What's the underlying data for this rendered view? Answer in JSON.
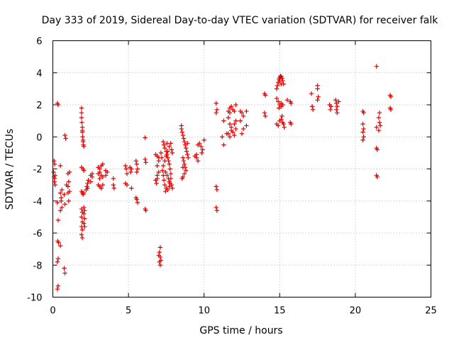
{
  "chart_data": {
    "type": "scatter",
    "title": "Day 333 of 2019, Sidereal Day-to-day VTEC variation (SDTVAR) for receiver falk",
    "xlabel": "GPS time / hours",
    "ylabel": "SDTVAR / TECUs",
    "xlim": [
      0,
      25
    ],
    "ylim": [
      -10,
      6
    ],
    "xticks": [
      0,
      5,
      10,
      15,
      20,
      25
    ],
    "yticks": [
      -10,
      -8,
      -6,
      -4,
      -2,
      0,
      2,
      4,
      6
    ],
    "grid": true,
    "marker": "+",
    "color": "#e00000",
    "series": [
      {
        "name": "SDTVAR",
        "points": [
          [
            0.05,
            -2.2
          ],
          [
            0.08,
            -2.5
          ],
          [
            0.1,
            -2.8
          ],
          [
            0.12,
            -2.6
          ],
          [
            0.15,
            -2.4
          ],
          [
            0.08,
            -1.5
          ],
          [
            0.12,
            -1.7
          ],
          [
            0.15,
            -3.0
          ],
          [
            0.3,
            2.1
          ],
          [
            0.35,
            2.0
          ],
          [
            0.3,
            -4.1
          ],
          [
            0.35,
            -5.2
          ],
          [
            0.32,
            -6.5
          ],
          [
            0.38,
            -6.6
          ],
          [
            0.35,
            -7.6
          ],
          [
            0.3,
            -7.8
          ],
          [
            0.35,
            -9.3
          ],
          [
            0.3,
            -9.5
          ],
          [
            0.5,
            -1.8
          ],
          [
            0.5,
            -3.5
          ],
          [
            0.55,
            -3.8
          ],
          [
            0.5,
            -4.6
          ],
          [
            0.6,
            -4.4
          ],
          [
            0.5,
            -6.8
          ],
          [
            0.55,
            -4.0
          ],
          [
            0.6,
            -3.3
          ],
          [
            0.8,
            0.1
          ],
          [
            0.85,
            -0.1
          ],
          [
            0.75,
            -3.6
          ],
          [
            0.8,
            -4.2
          ],
          [
            0.75,
            -8.2
          ],
          [
            0.8,
            -8.5
          ],
          [
            0.9,
            -3.0
          ],
          [
            1.0,
            -3.1
          ],
          [
            1.05,
            -2.8
          ],
          [
            1.0,
            -2.3
          ],
          [
            1.1,
            -2.2
          ],
          [
            1.0,
            -3.5
          ],
          [
            1.05,
            -4.0
          ],
          [
            1.1,
            -3.4
          ],
          [
            1.9,
            1.8
          ],
          [
            1.9,
            1.5
          ],
          [
            1.9,
            1.2
          ],
          [
            1.92,
            0.9
          ],
          [
            1.95,
            0.6
          ],
          [
            1.95,
            0.3
          ],
          [
            1.97,
            0.0
          ],
          [
            2.0,
            -0.3
          ],
          [
            2.02,
            -0.5
          ],
          [
            2.05,
            -0.6
          ],
          [
            2.0,
            -0.2
          ],
          [
            1.95,
            0.4
          ],
          [
            1.9,
            -1.9
          ],
          [
            2.0,
            -2.0
          ],
          [
            2.05,
            -2.1
          ],
          [
            1.9,
            -3.4
          ],
          [
            1.95,
            -3.5
          ],
          [
            2.0,
            -3.6
          ],
          [
            2.05,
            -3.5
          ],
          [
            1.9,
            -4.5
          ],
          [
            1.95,
            -4.7
          ],
          [
            1.9,
            -5.0
          ],
          [
            1.95,
            -5.3
          ],
          [
            1.9,
            -5.6
          ],
          [
            1.95,
            -5.8
          ],
          [
            1.9,
            -6.1
          ],
          [
            1.95,
            -6.3
          ],
          [
            2.05,
            -4.4
          ],
          [
            2.1,
            -4.6
          ],
          [
            2.05,
            -4.8
          ],
          [
            2.1,
            -5.1
          ],
          [
            2.05,
            -5.4
          ],
          [
            2.1,
            -5.6
          ],
          [
            2.2,
            -3.3
          ],
          [
            2.25,
            -3.1
          ],
          [
            2.3,
            -2.9
          ],
          [
            2.35,
            -2.7
          ],
          [
            2.3,
            -3.2
          ],
          [
            2.5,
            -2.4
          ],
          [
            2.6,
            -2.3
          ],
          [
            2.5,
            -2.8
          ],
          [
            2.6,
            -2.5
          ],
          [
            3.0,
            -1.9
          ],
          [
            3.1,
            -2.0
          ],
          [
            3.2,
            -1.8
          ],
          [
            3.3,
            -1.7
          ],
          [
            3.0,
            -2.3
          ],
          [
            3.1,
            -2.2
          ],
          [
            3.2,
            -2.4
          ],
          [
            3.3,
            -2.5
          ],
          [
            3.1,
            -2.6
          ],
          [
            3.0,
            -3.0
          ],
          [
            3.1,
            -3.1
          ],
          [
            3.2,
            -3.2
          ],
          [
            3.3,
            -3.0
          ],
          [
            3.5,
            -2.1
          ],
          [
            3.5,
            -2.4
          ],
          [
            3.6,
            -2.2
          ],
          [
            4.0,
            -2.6
          ],
          [
            4.0,
            -3.0
          ],
          [
            4.05,
            -3.2
          ],
          [
            4.8,
            -1.8
          ],
          [
            4.85,
            -2.0
          ],
          [
            4.9,
            -2.3
          ],
          [
            4.8,
            -2.9
          ],
          [
            4.9,
            -3.0
          ],
          [
            5.1,
            -1.9
          ],
          [
            5.15,
            -2.2
          ],
          [
            5.2,
            -2.0
          ],
          [
            5.2,
            -3.2
          ],
          [
            5.5,
            -1.5
          ],
          [
            5.55,
            -1.7
          ],
          [
            5.6,
            -2.0
          ],
          [
            5.55,
            -2.2
          ],
          [
            5.5,
            -3.8
          ],
          [
            5.55,
            -3.9
          ],
          [
            5.6,
            -4.1
          ],
          [
            6.1,
            -0.05
          ],
          [
            6.1,
            -1.4
          ],
          [
            6.15,
            -1.6
          ],
          [
            6.1,
            -4.5
          ],
          [
            6.15,
            -4.6
          ],
          [
            6.8,
            -1.1
          ],
          [
            6.9,
            -1.2
          ],
          [
            7.0,
            -1.3
          ],
          [
            7.0,
            -1.5
          ],
          [
            6.9,
            -1.8
          ],
          [
            7.0,
            -2.2
          ],
          [
            6.9,
            -2.6
          ],
          [
            6.85,
            -2.9
          ],
          [
            6.8,
            -2.7
          ],
          [
            6.9,
            -2.4
          ],
          [
            7.1,
            -6.9
          ],
          [
            7.05,
            -7.2
          ],
          [
            7.1,
            -7.5
          ],
          [
            7.05,
            -7.8
          ],
          [
            7.1,
            -8.0
          ],
          [
            7.15,
            -7.7
          ],
          [
            7.0,
            -7.4
          ],
          [
            7.3,
            -0.3
          ],
          [
            7.35,
            -0.5
          ],
          [
            7.4,
            -0.7
          ],
          [
            7.5,
            -0.9
          ],
          [
            7.55,
            -1.1
          ],
          [
            7.6,
            -1.3
          ],
          [
            7.65,
            -1.5
          ],
          [
            7.7,
            -1.7
          ],
          [
            7.75,
            -2.0
          ],
          [
            7.8,
            -2.3
          ],
          [
            7.8,
            -2.6
          ],
          [
            7.75,
            -2.9
          ],
          [
            7.7,
            -3.1
          ],
          [
            7.6,
            -3.3
          ],
          [
            7.5,
            -3.2
          ],
          [
            7.4,
            -3.0
          ],
          [
            7.35,
            -2.7
          ],
          [
            7.3,
            -2.4
          ],
          [
            7.25,
            -2.1
          ],
          [
            7.3,
            -1.8
          ],
          [
            7.4,
            -1.5
          ],
          [
            7.5,
            -1.2
          ],
          [
            7.6,
            -0.9
          ],
          [
            7.7,
            -0.6
          ],
          [
            7.8,
            -0.4
          ],
          [
            7.85,
            -0.8
          ],
          [
            7.9,
            -1.0
          ],
          [
            7.55,
            -0.4
          ],
          [
            7.45,
            -2.2
          ],
          [
            7.55,
            -2.4
          ],
          [
            7.65,
            -2.6
          ],
          [
            7.7,
            -2.8
          ],
          [
            7.85,
            -3.0
          ],
          [
            7.9,
            -3.2
          ],
          [
            7.45,
            -3.4
          ],
          [
            7.2,
            -1.3
          ],
          [
            7.15,
            -1.0
          ],
          [
            8.5,
            0.5
          ],
          [
            8.55,
            0.3
          ],
          [
            8.6,
            0.1
          ],
          [
            8.65,
            -0.1
          ],
          [
            8.7,
            -0.3
          ],
          [
            8.75,
            -0.5
          ],
          [
            8.8,
            -0.7
          ],
          [
            8.85,
            -0.9
          ],
          [
            8.9,
            -1.1
          ],
          [
            8.95,
            -1.3
          ],
          [
            8.6,
            -1.3
          ],
          [
            8.65,
            -1.5
          ],
          [
            8.7,
            -1.7
          ],
          [
            8.75,
            -1.9
          ],
          [
            8.8,
            -2.1
          ],
          [
            8.7,
            -2.3
          ],
          [
            8.6,
            -2.5
          ],
          [
            8.55,
            -2.6
          ],
          [
            8.6,
            -1.9
          ],
          [
            8.9,
            -0.4
          ],
          [
            8.5,
            0.7
          ],
          [
            9.4,
            -1.2
          ],
          [
            9.5,
            -1.3
          ],
          [
            9.6,
            -1.5
          ],
          [
            9.5,
            -1.1
          ],
          [
            9.7,
            -0.4
          ],
          [
            9.8,
            -0.6
          ],
          [
            9.9,
            -0.8
          ],
          [
            9.85,
            -1.0
          ],
          [
            10.0,
            -0.2
          ],
          [
            9.6,
            -0.5
          ],
          [
            10.8,
            2.1
          ],
          [
            10.85,
            1.7
          ],
          [
            10.8,
            1.5
          ],
          [
            10.8,
            -3.1
          ],
          [
            10.85,
            -3.3
          ],
          [
            10.8,
            -4.4
          ],
          [
            10.85,
            -4.6
          ],
          [
            11.2,
            0.0
          ],
          [
            11.3,
            -0.5
          ],
          [
            11.3,
            1.0
          ],
          [
            11.6,
            1.6
          ],
          [
            11.7,
            1.8
          ],
          [
            11.8,
            1.9
          ],
          [
            11.9,
            1.7
          ],
          [
            11.7,
            1.5
          ],
          [
            11.6,
            1.2
          ],
          [
            11.7,
            0.8
          ],
          [
            11.8,
            0.6
          ],
          [
            11.9,
            0.3
          ],
          [
            12.0,
            0.1
          ],
          [
            11.6,
            0.2
          ],
          [
            11.7,
            0.0
          ],
          [
            11.8,
            0.4
          ],
          [
            12.0,
            0.8
          ],
          [
            12.1,
            1.0
          ],
          [
            12.1,
            0.5
          ],
          [
            12.0,
            1.6
          ],
          [
            12.1,
            2.0
          ],
          [
            12.4,
            1.6
          ],
          [
            12.5,
            1.5
          ],
          [
            12.6,
            1.3
          ],
          [
            12.8,
            1.6
          ],
          [
            12.8,
            0.7
          ],
          [
            12.6,
            0.5
          ],
          [
            12.4,
            1.0
          ],
          [
            12.5,
            0.2
          ],
          [
            11.5,
            0.2
          ],
          [
            14.0,
            2.7
          ],
          [
            14.05,
            2.6
          ],
          [
            14.0,
            1.5
          ],
          [
            14.05,
            1.3
          ],
          [
            14.8,
            3.0
          ],
          [
            14.85,
            3.2
          ],
          [
            14.9,
            3.4
          ],
          [
            14.95,
            3.6
          ],
          [
            15.0,
            3.7
          ],
          [
            15.05,
            3.8
          ],
          [
            15.1,
            3.75
          ],
          [
            15.15,
            3.65
          ],
          [
            15.2,
            3.5
          ],
          [
            15.25,
            3.3
          ],
          [
            15.0,
            3.5
          ],
          [
            15.1,
            3.3
          ],
          [
            14.8,
            2.4
          ],
          [
            14.9,
            2.2
          ],
          [
            15.0,
            2.0
          ],
          [
            14.95,
            1.8
          ],
          [
            15.1,
            2.1
          ],
          [
            15.2,
            2.0
          ],
          [
            15.1,
            1.9
          ],
          [
            14.8,
            0.8
          ],
          [
            14.9,
            0.7
          ],
          [
            15.0,
            1.0
          ],
          [
            15.1,
            1.1
          ],
          [
            15.15,
            1.3
          ],
          [
            15.2,
            0.9
          ],
          [
            15.3,
            0.6
          ],
          [
            15.25,
            0.8
          ],
          [
            15.7,
            2.2
          ],
          [
            15.75,
            2.1
          ],
          [
            15.7,
            0.9
          ],
          [
            15.75,
            0.8
          ],
          [
            15.5,
            2.3
          ],
          [
            17.1,
            2.7
          ],
          [
            17.15,
            1.9
          ],
          [
            17.2,
            1.7
          ],
          [
            17.5,
            3.2
          ],
          [
            17.5,
            3.0
          ],
          [
            17.55,
            2.5
          ],
          [
            17.5,
            2.3
          ],
          [
            18.3,
            2.0
          ],
          [
            18.35,
            1.7
          ],
          [
            18.4,
            1.9
          ],
          [
            18.7,
            2.3
          ],
          [
            18.75,
            2.1
          ],
          [
            18.8,
            1.9
          ],
          [
            18.75,
            1.7
          ],
          [
            18.8,
            1.5
          ],
          [
            18.9,
            2.2
          ],
          [
            20.5,
            1.6
          ],
          [
            20.55,
            1.5
          ],
          [
            20.5,
            0.8
          ],
          [
            20.55,
            0.5
          ],
          [
            20.5,
            0.3
          ],
          [
            20.55,
            0.0
          ],
          [
            20.5,
            -0.2
          ],
          [
            21.4,
            4.4
          ],
          [
            21.4,
            -0.7
          ],
          [
            21.45,
            -0.8
          ],
          [
            21.4,
            -2.4
          ],
          [
            21.45,
            -2.5
          ],
          [
            21.4,
            0.6
          ],
          [
            21.6,
            1.5
          ],
          [
            21.55,
            1.2
          ],
          [
            21.6,
            0.9
          ],
          [
            21.65,
            0.7
          ],
          [
            21.55,
            0.4
          ],
          [
            22.3,
            2.6
          ],
          [
            22.35,
            2.5
          ],
          [
            22.3,
            1.8
          ],
          [
            22.35,
            1.7
          ]
        ]
      }
    ]
  }
}
